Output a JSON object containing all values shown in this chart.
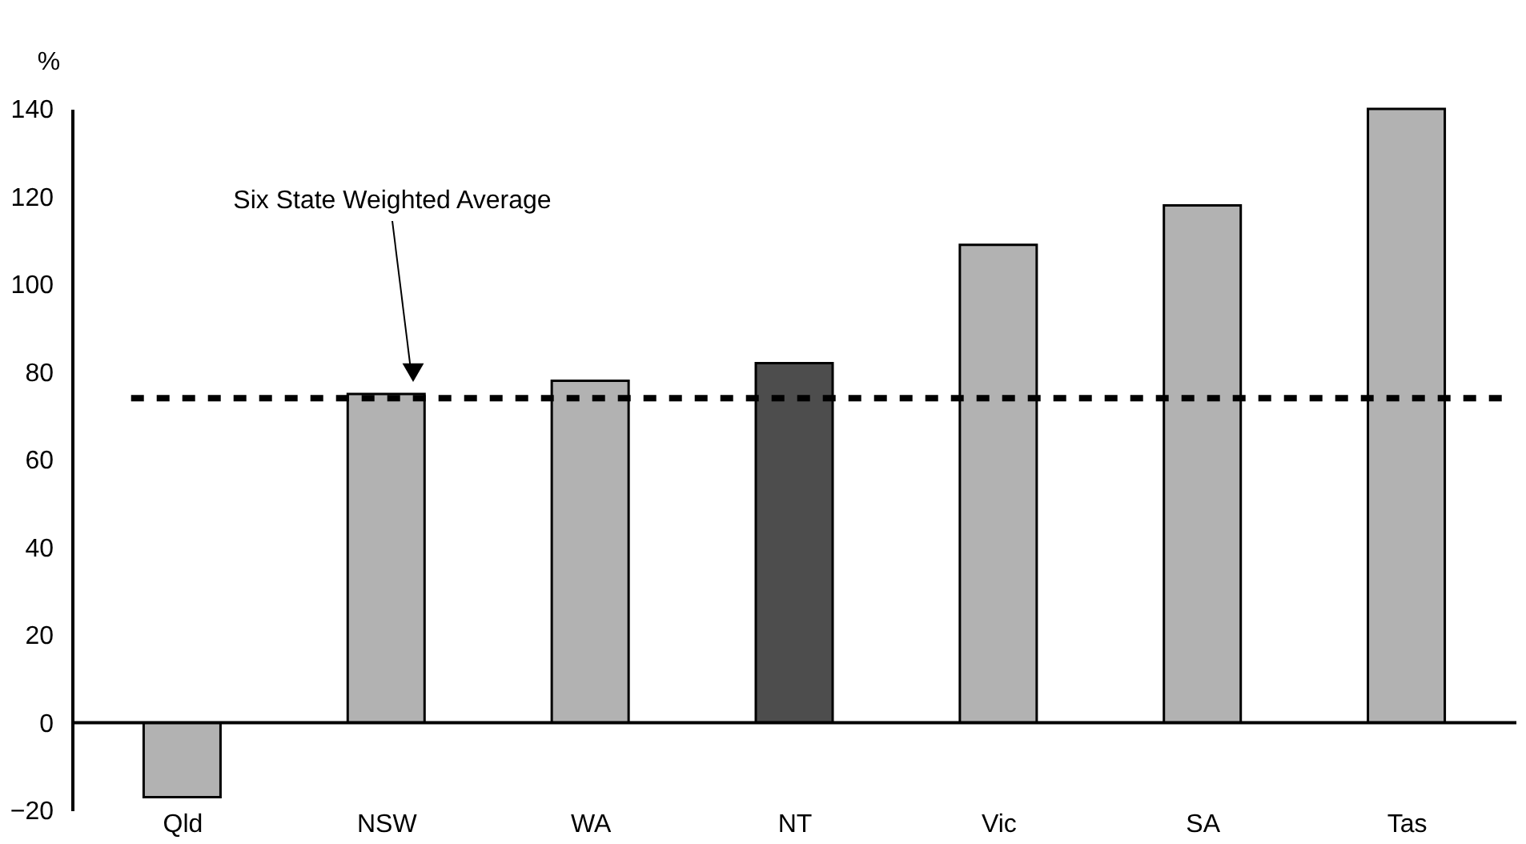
{
  "chart_data": {
    "type": "bar",
    "ylabel": "%",
    "categories": [
      "Qld",
      "NSW",
      "WA",
      "NT",
      "Vic",
      "SA",
      "Tas"
    ],
    "values": [
      -17,
      75,
      78,
      82,
      109,
      118,
      140
    ],
    "colors": [
      "#b2b2b2",
      "#b2b2b2",
      "#b2b2b2",
      "#4d4d4d",
      "#b2b2b2",
      "#b2b2b2",
      "#b2b2b2"
    ],
    "ylim": [
      -20,
      140
    ],
    "yticks": [
      -20,
      0,
      20,
      40,
      60,
      80,
      100,
      120,
      140
    ],
    "ref_lines": [
      {
        "axis": "y",
        "value": 74,
        "line_style": "dashed",
        "color": "#000000"
      }
    ],
    "annotations": [
      "Six State Weighted Average"
    ]
  }
}
